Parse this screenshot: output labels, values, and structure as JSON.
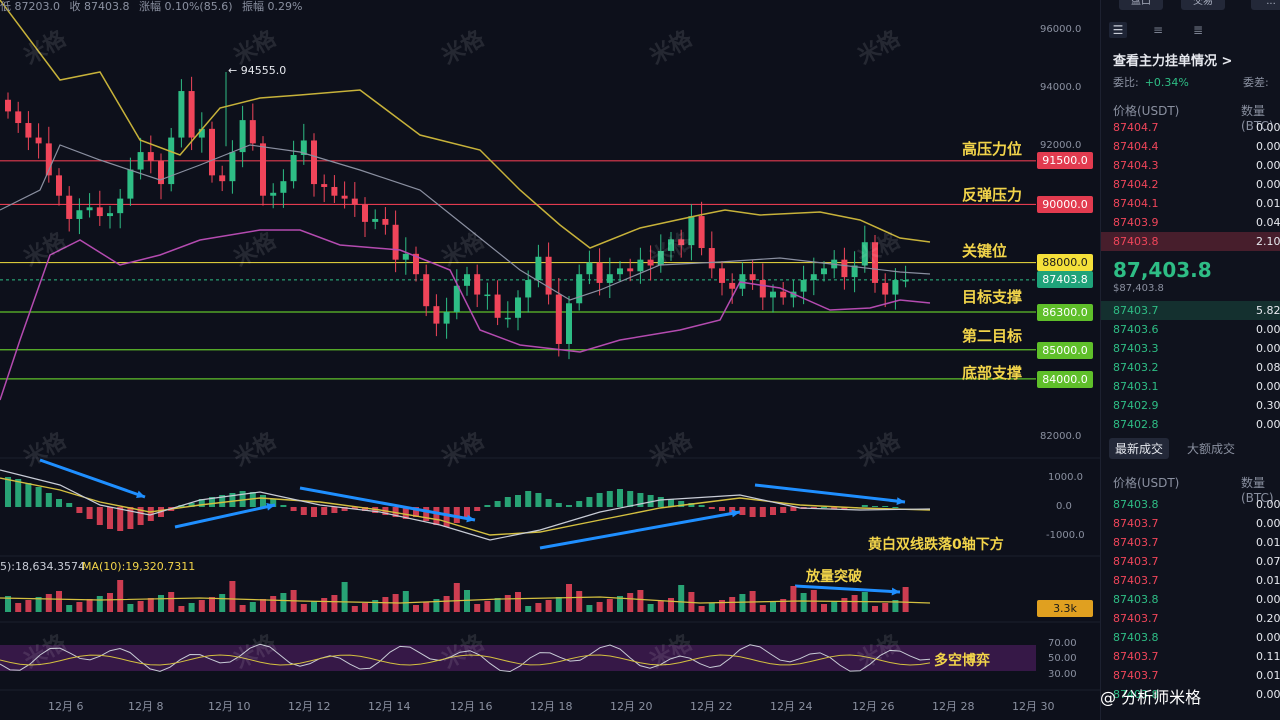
{
  "info_bar": [
    "低 87203.0",
    "收 87403.8",
    "涨幅 0.10%(85.6)",
    "振幅 0.29%"
  ],
  "peak_label": "← 94555.0",
  "levels": [
    {
      "label": "高压力位",
      "value": "91500.0",
      "color": "#e23b4f"
    },
    {
      "label": "反弹压力",
      "value": "90000.0",
      "color": "#e23b4f"
    },
    {
      "label": "关键位",
      "value": "88000.0",
      "color": "#f5e03a"
    },
    {
      "label": "目标支撑",
      "value": "86300.0",
      "color": "#5fbf2a"
    },
    {
      "label": "第二目标",
      "value": "85000.0",
      "color": "#5fbf2a"
    },
    {
      "label": "底部支撑",
      "value": "84000.0",
      "color": "#5fbf2a"
    }
  ],
  "current_price_tag": "87403.8",
  "y_axis": [
    "96000.0",
    "94000.0",
    "92000.0",
    "82000.0"
  ],
  "macd_axis": [
    "1000.0",
    "0.0",
    "-1000.0"
  ],
  "vol_tag": "3.3k",
  "rsi_axis": [
    "70.00",
    "50.00",
    "30.00"
  ],
  "dates": [
    "12月 6",
    "12月 8",
    "12月 10",
    "12月 12",
    "12月 14",
    "12月 16",
    "12月 18",
    "12月 20",
    "12月 22",
    "12月 24",
    "12月 26",
    "12月 28",
    "12月 30"
  ],
  "annotations": {
    "macd": "黄白双线跌落0轴下方",
    "volume": "放量突破",
    "rsi": "多空博弈"
  },
  "volume_ma": {
    "ma5": "5):18,634.3574",
    "ma10": "MA(10):19,320.7311"
  },
  "watermark": "米格",
  "side": {
    "top_buttons": [
      "盘口",
      "交易",
      "..."
    ],
    "icons": [
      "order-book-both-icon",
      "order-book-bids-icon",
      "order-book-asks-icon"
    ],
    "title": "查看主力挂单情况 >",
    "ratio_label": "委比:",
    "ratio_value": "+0.34%",
    "ratio_label2": "委差:",
    "book_head": {
      "price": "价格(USDT)",
      "qty": "数量 (BTC)"
    },
    "asks": [
      {
        "p": "87404.7",
        "q": "0.00"
      },
      {
        "p": "87404.4",
        "q": "0.00"
      },
      {
        "p": "87404.3",
        "q": "0.00"
      },
      {
        "p": "87404.2",
        "q": "0.00"
      },
      {
        "p": "87404.1",
        "q": "0.01"
      },
      {
        "p": "87403.9",
        "q": "0.04"
      },
      {
        "p": "87403.8",
        "q": "2.10"
      }
    ],
    "last_price": "87,403.8",
    "last_price_usd": "$87,403.8",
    "bids": [
      {
        "p": "87403.7",
        "q": "5.82"
      },
      {
        "p": "87403.6",
        "q": "0.00"
      },
      {
        "p": "87403.3",
        "q": "0.00"
      },
      {
        "p": "87403.2",
        "q": "0.08"
      },
      {
        "p": "87403.1",
        "q": "0.00"
      },
      {
        "p": "87402.9",
        "q": "0.30"
      },
      {
        "p": "87402.8",
        "q": "0.00"
      }
    ],
    "tabs": [
      "最新成交",
      "大额成交"
    ],
    "trades_head": {
      "price": "价格(USDT)",
      "qty": "数量(BTC)"
    },
    "trades": [
      {
        "p": "87403.8",
        "q": "0.00",
        "side": "buy"
      },
      {
        "p": "87403.7",
        "q": "0.00",
        "side": "sell"
      },
      {
        "p": "87403.7",
        "q": "0.01",
        "side": "sell"
      },
      {
        "p": "87403.7",
        "q": "0.07",
        "side": "sell"
      },
      {
        "p": "87403.7",
        "q": "0.01",
        "side": "sell"
      },
      {
        "p": "87403.8",
        "q": "0.00",
        "side": "buy"
      },
      {
        "p": "87403.7",
        "q": "0.20",
        "side": "sell"
      },
      {
        "p": "87403.8",
        "q": "0.00",
        "side": "buy"
      },
      {
        "p": "87403.7",
        "q": "0.11",
        "side": "sell"
      },
      {
        "p": "87403.7",
        "q": "0.01",
        "side": "sell"
      },
      {
        "p": "87403.8",
        "q": "0.00",
        "side": "buy"
      }
    ]
  },
  "brand": "@ 分析师米格",
  "colors": {
    "up": "#2ebd85",
    "down": "#f0455a",
    "gold": "#f2d44a"
  }
}
